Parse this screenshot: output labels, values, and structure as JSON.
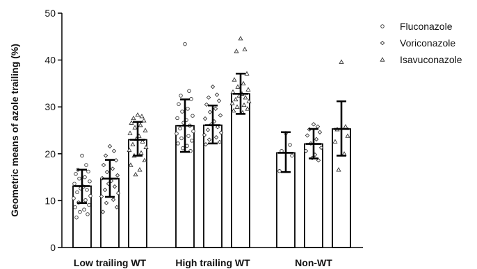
{
  "chart_data": {
    "type": "bar",
    "ylabel": "Geometric means of azole trailing (%)",
    "ylim": [
      0,
      50
    ],
    "yticks": [
      0,
      10,
      20,
      30,
      40,
      50
    ],
    "categories": [
      "Low trailing WT",
      "High trailing WT",
      "Non-WT"
    ],
    "error_bars": "mean with error bars",
    "bar_fill": "#ffffff",
    "bar_stroke": "#000000",
    "legend_position": "top-right",
    "series": [
      {
        "name": "Fluconazole",
        "marker": "circle",
        "values": [
          13.1,
          26.0,
          20.2
        ],
        "err_low": [
          9.5,
          20.4,
          16.1
        ],
        "err_high": [
          16.6,
          31.6,
          24.6
        ],
        "points": [
          [
            19.6,
            17.6,
            16.6,
            16.2,
            15.7,
            15.0,
            14.7,
            14.1,
            13.6,
            13.0,
            12.6,
            12.3,
            11.8,
            11.0,
            10.5,
            10.1,
            9.6,
            9.1,
            8.6,
            8.1,
            7.6,
            7.1,
            6.4
          ],
          [
            43.4,
            33.4,
            32.4,
            31.7,
            30.6,
            29.6,
            29.0,
            28.1,
            27.6,
            27.2,
            26.6,
            26.0,
            25.4,
            24.8,
            24.3,
            23.8,
            23.3,
            22.8,
            22.2,
            21.7,
            21.2,
            20.6
          ],
          [
            24.4,
            21.9,
            20.6,
            19.6,
            16.3
          ]
        ]
      },
      {
        "name": "Voriconazole",
        "marker": "diamond",
        "values": [
          14.7,
          26.1,
          22.1
        ],
        "err_low": [
          10.8,
          22.2,
          19.0
        ],
        "err_high": [
          18.7,
          30.3,
          25.3
        ],
        "points": [
          [
            21.6,
            20.6,
            19.6,
            18.6,
            17.6,
            16.8,
            16.1,
            15.4,
            14.8,
            14.2,
            13.6,
            13.0,
            12.3,
            11.6,
            10.9,
            10.2,
            9.5,
            8.6,
            7.6
          ],
          [
            34.3,
            32.6,
            32.0,
            31.3,
            30.5,
            29.6,
            28.9,
            28.2,
            27.5,
            26.9,
            26.3,
            25.7,
            25.1,
            24.5,
            24.0,
            23.5,
            23.0,
            22.5,
            22.0
          ],
          [
            26.3,
            25.8,
            25.2,
            24.6,
            23.9,
            23.1,
            22.2,
            21.3,
            20.6,
            19.8,
            19.1,
            18.6
          ]
        ]
      },
      {
        "name": "Isavuconazole",
        "marker": "triangle",
        "values": [
          23.0,
          32.8,
          25.3
        ],
        "err_low": [
          19.6,
          28.5,
          19.6
        ],
        "err_high": [
          26.8,
          37.1,
          31.2
        ],
        "points": [
          [
            28.3,
            28.0,
            27.6,
            27.1,
            26.6,
            26.1,
            25.6,
            25.0,
            24.4,
            23.8,
            23.2,
            22.6,
            22.0,
            21.4,
            20.8,
            20.2,
            19.6,
            18.6,
            17.6,
            16.6,
            15.6
          ],
          [
            44.6,
            42.3,
            41.9,
            37.1,
            35.8,
            35.0,
            34.3,
            33.7,
            33.2,
            32.8,
            32.4,
            32.0,
            31.6,
            31.2,
            30.8,
            30.4,
            30.0,
            29.6,
            29.2,
            28.8
          ],
          [
            39.6,
            25.8,
            25.2,
            23.8,
            22.6,
            20.0,
            16.6
          ]
        ]
      }
    ]
  }
}
